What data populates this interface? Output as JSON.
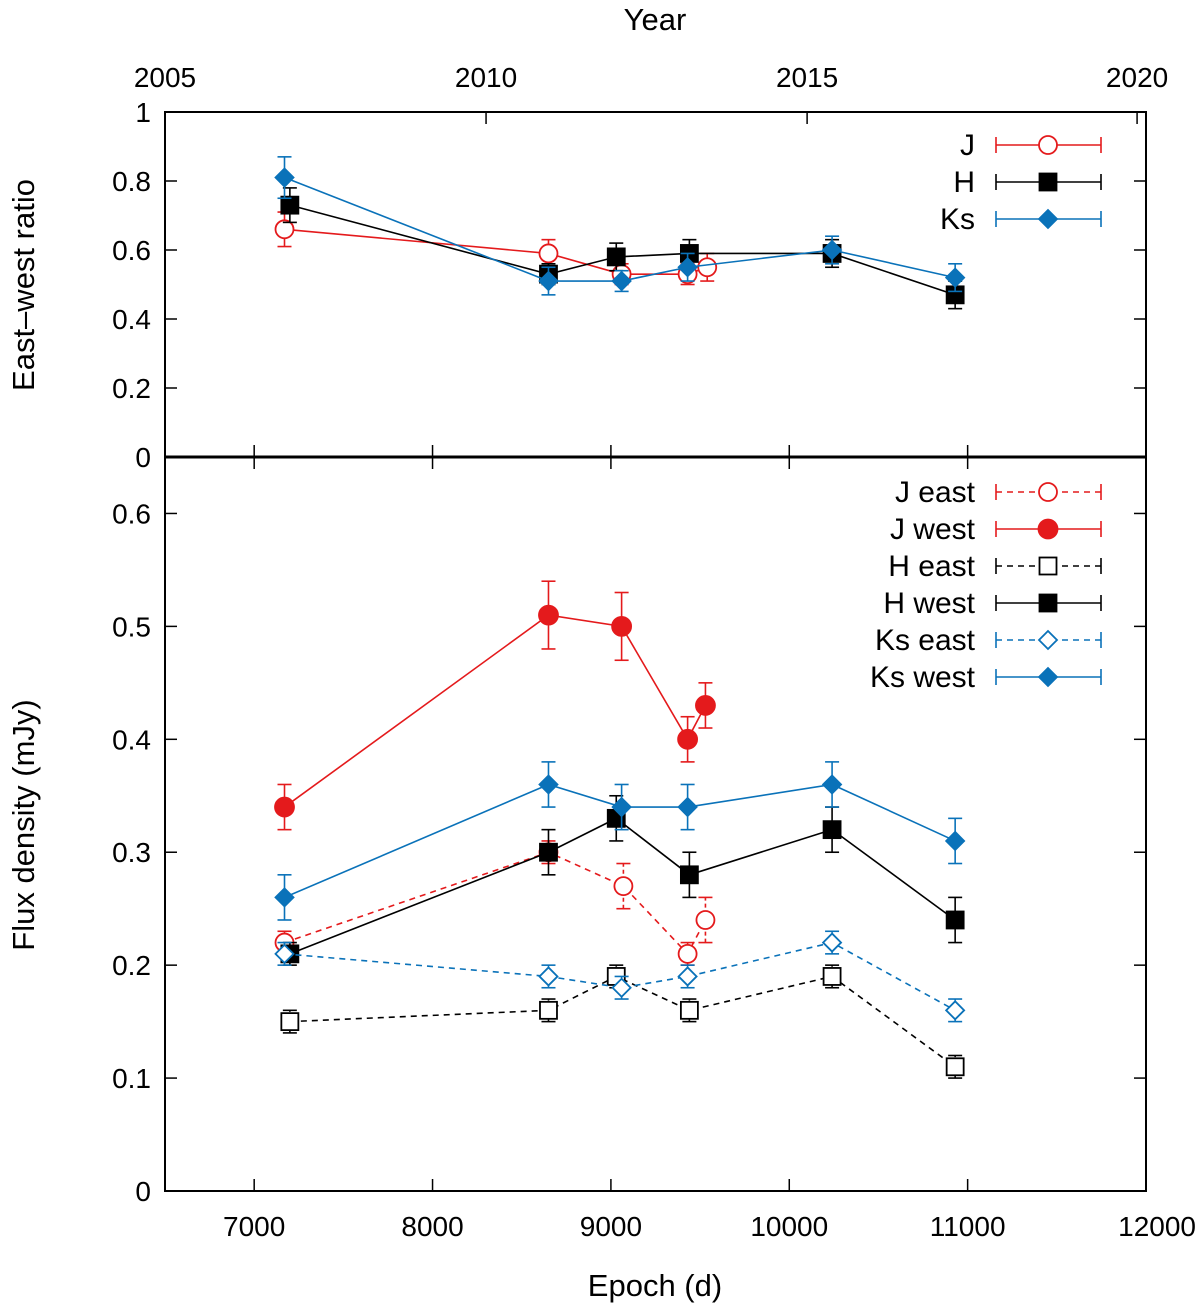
{
  "chart_data": [
    {
      "type": "line",
      "panel": "top",
      "ylabel": "East–west ratio",
      "top_xlabel": "Year",
      "ylim": [
        0,
        1
      ],
      "yticks": [
        "0",
        "0.2",
        "0.4",
        "0.6",
        "0.8",
        "1"
      ],
      "yticks_values": [
        0,
        0.2,
        0.4,
        0.6,
        0.8,
        1
      ],
      "year_ticks": [
        "2005",
        "2010",
        "2015",
        "2020"
      ],
      "year_tick_epochs": [
        6500,
        8300,
        10100,
        11950
      ],
      "xlim": [
        6500,
        12000
      ],
      "legend_position": "top-right",
      "series": [
        {
          "name": "J",
          "color": "#e41a1c",
          "marker": "circle-open",
          "dashed": false,
          "x": [
            7170,
            8650,
            9060,
            9430,
            9540
          ],
          "y": [
            0.66,
            0.59,
            0.53,
            0.53,
            0.55
          ],
          "err": [
            0.05,
            0.04,
            0.03,
            0.03,
            0.04
          ]
        },
        {
          "name": "H",
          "color": "#000000",
          "marker": "square-filled",
          "dashed": false,
          "x": [
            7200,
            8650,
            9030,
            9440,
            10240,
            10930
          ],
          "y": [
            0.73,
            0.53,
            0.58,
            0.59,
            0.59,
            0.47
          ],
          "err": [
            0.05,
            0.03,
            0.04,
            0.04,
            0.04,
            0.04
          ]
        },
        {
          "name": "Ks",
          "color": "#0a72b9",
          "marker": "diamond-filled",
          "dashed": false,
          "x": [
            7170,
            8650,
            9060,
            9430,
            10240,
            10930
          ],
          "y": [
            0.81,
            0.51,
            0.51,
            0.55,
            0.6,
            0.52
          ],
          "err": [
            0.06,
            0.04,
            0.03,
            0.04,
            0.04,
            0.04
          ]
        }
      ]
    },
    {
      "type": "line",
      "panel": "bottom",
      "xlabel": "Epoch (d)",
      "ylabel": "Flux density (mJy)",
      "xlim": [
        6500,
        12000
      ],
      "ylim": [
        0,
        0.65
      ],
      "xticks": [
        "7000",
        "8000",
        "9000",
        "10000",
        "11000",
        "12000"
      ],
      "xticks_values": [
        7000,
        8000,
        9000,
        10000,
        11000,
        12000
      ],
      "yticks": [
        "0",
        "0.1",
        "0.2",
        "0.3",
        "0.4",
        "0.5",
        "0.6"
      ],
      "yticks_values": [
        0,
        0.1,
        0.2,
        0.3,
        0.4,
        0.5,
        0.6
      ],
      "legend_position": "top-right",
      "series": [
        {
          "name": "J east",
          "color": "#e41a1c",
          "marker": "circle-open",
          "dashed": true,
          "x": [
            7170,
            8650,
            9070,
            9430,
            9530
          ],
          "y": [
            0.22,
            0.3,
            0.27,
            0.21,
            0.24
          ],
          "err": [
            0.01,
            0.01,
            0.02,
            0.01,
            0.02
          ]
        },
        {
          "name": "J west",
          "color": "#e41a1c",
          "marker": "circle-filled",
          "dashed": false,
          "x": [
            7170,
            8650,
            9060,
            9430,
            9530
          ],
          "y": [
            0.34,
            0.51,
            0.5,
            0.4,
            0.43
          ],
          "err": [
            0.02,
            0.03,
            0.03,
            0.02,
            0.02
          ]
        },
        {
          "name": "H east",
          "color": "#000000",
          "marker": "square-open",
          "dashed": true,
          "x": [
            7200,
            8650,
            9030,
            9440,
            10240,
            10930
          ],
          "y": [
            0.15,
            0.16,
            0.19,
            0.16,
            0.19,
            0.11
          ],
          "err": [
            0.01,
            0.01,
            0.01,
            0.01,
            0.01,
            0.01
          ]
        },
        {
          "name": "H west",
          "color": "#000000",
          "marker": "square-filled",
          "dashed": false,
          "x": [
            7200,
            8650,
            9030,
            9440,
            10240,
            10930
          ],
          "y": [
            0.21,
            0.3,
            0.33,
            0.28,
            0.32,
            0.24
          ],
          "err": [
            0.01,
            0.02,
            0.02,
            0.02,
            0.02,
            0.02
          ]
        },
        {
          "name": "Ks east",
          "color": "#0a72b9",
          "marker": "diamond-open",
          "dashed": true,
          "x": [
            7170,
            8650,
            9060,
            9430,
            10240,
            10930
          ],
          "y": [
            0.21,
            0.19,
            0.18,
            0.19,
            0.22,
            0.16
          ],
          "err": [
            0.01,
            0.01,
            0.01,
            0.01,
            0.01,
            0.01
          ]
        },
        {
          "name": "Ks west",
          "color": "#0a72b9",
          "marker": "diamond-filled",
          "dashed": false,
          "x": [
            7170,
            8650,
            9060,
            9430,
            10240,
            10930
          ],
          "y": [
            0.26,
            0.36,
            0.34,
            0.34,
            0.36,
            0.31
          ],
          "err": [
            0.02,
            0.02,
            0.02,
            0.02,
            0.02,
            0.02
          ]
        }
      ]
    }
  ]
}
